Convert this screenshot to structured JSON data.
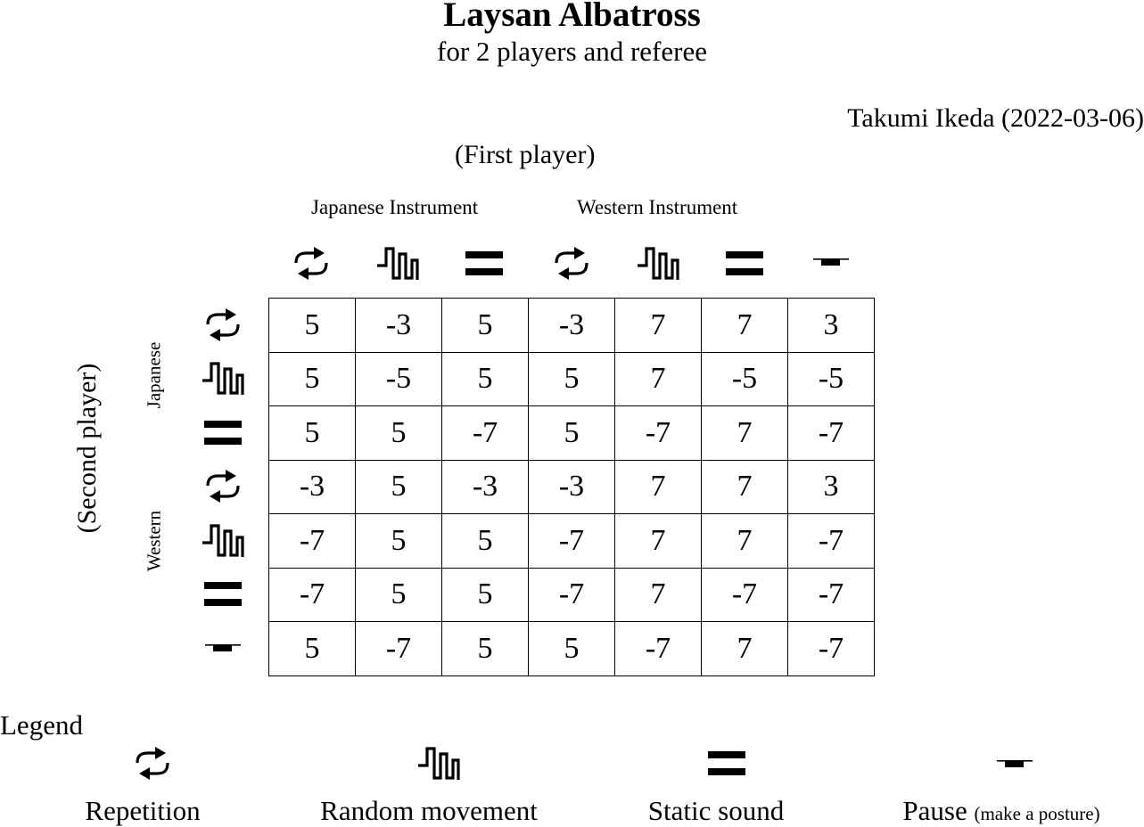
{
  "title": "Laysan Albatross",
  "subtitle": "for 2 players and referee",
  "author": "Takumi Ikeda (2022-03-06)",
  "first_player_label": "(First player)",
  "second_player_label": "(Second player)",
  "column_groups": [
    "Japanese Instrument",
    "Western Instrument"
  ],
  "row_groups": [
    "Japanese",
    "Western"
  ],
  "column_icons": [
    "repetition-icon",
    "random-movement-icon",
    "static-sound-icon",
    "repetition-icon",
    "random-movement-icon",
    "static-sound-icon",
    "pause-icon"
  ],
  "row_icons": [
    "repetition-icon",
    "random-movement-icon",
    "static-sound-icon",
    "repetition-icon",
    "random-movement-icon",
    "static-sound-icon",
    "pause-icon"
  ],
  "matrix": [
    [
      "5",
      "-3",
      "5",
      "-3",
      "7",
      "7",
      "3"
    ],
    [
      "5",
      "-5",
      "5",
      "5",
      "7",
      "-5",
      "-5"
    ],
    [
      "5",
      "5",
      "-7",
      "5",
      "-7",
      "7",
      "-7"
    ],
    [
      "-3",
      "5",
      "-3",
      "-3",
      "7",
      "7",
      "3"
    ],
    [
      "-7",
      "5",
      "5",
      "-7",
      "7",
      "7",
      "-7"
    ],
    [
      "-7",
      "5",
      "5",
      "-7",
      "7",
      "-7",
      "-7"
    ],
    [
      "5",
      "-7",
      "5",
      "5",
      "-7",
      "7",
      "-7"
    ]
  ],
  "legend": {
    "title": "Legend",
    "items": [
      {
        "icon": "repetition-icon",
        "label": "Repetition",
        "note": ""
      },
      {
        "icon": "random-movement-icon",
        "label": "Random movement",
        "note": ""
      },
      {
        "icon": "static-sound-icon",
        "label": "Static sound",
        "note": ""
      },
      {
        "icon": "pause-icon",
        "label": "Pause",
        "note": "(make a posture)"
      }
    ]
  }
}
